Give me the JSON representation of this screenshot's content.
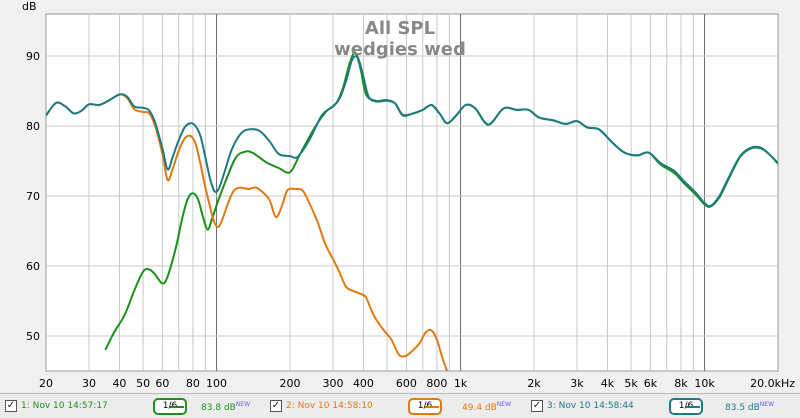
{
  "chart_data": {
    "type": "line",
    "title": "All SPL",
    "subtitle": "wedgies wed",
    "ylabel": "dB",
    "xlabel": "",
    "xscale": "log",
    "xlim": [
      20,
      20000
    ],
    "ylim": [
      45,
      96
    ],
    "grid": true,
    "x_ticks": [
      {
        "v": 20,
        "t": "20"
      },
      {
        "v": 30,
        "t": "30"
      },
      {
        "v": 40,
        "t": "40"
      },
      {
        "v": 50,
        "t": "50"
      },
      {
        "v": 60,
        "t": "60"
      },
      {
        "v": 80,
        "t": "80"
      },
      {
        "v": 100,
        "t": "100"
      },
      {
        "v": 200,
        "t": "200"
      },
      {
        "v": 300,
        "t": "300"
      },
      {
        "v": 400,
        "t": "400"
      },
      {
        "v": 600,
        "t": "600"
      },
      {
        "v": 800,
        "t": "800"
      },
      {
        "v": 1000,
        "t": "1k"
      },
      {
        "v": 2000,
        "t": "2k"
      },
      {
        "v": 3000,
        "t": "3k"
      },
      {
        "v": 4000,
        "t": "4k"
      },
      {
        "v": 5000,
        "t": "5k"
      },
      {
        "v": 6000,
        "t": "6k"
      },
      {
        "v": 8000,
        "t": "8k"
      },
      {
        "v": 10000,
        "t": "10k"
      },
      {
        "v": 20000,
        "t": "20.0kHz"
      }
    ],
    "y_ticks": [
      {
        "v": 50,
        "t": "50"
      },
      {
        "v": 60,
        "t": "60"
      },
      {
        "v": 70,
        "t": "70"
      },
      {
        "v": 80,
        "t": "80"
      },
      {
        "v": 90,
        "t": "90"
      }
    ],
    "series": [
      {
        "color": "#1e8f1e",
        "points": [
          [
            35,
            48
          ],
          [
            38,
            50.5
          ],
          [
            42,
            53
          ],
          [
            46,
            56.5
          ],
          [
            50,
            59.2
          ],
          [
            53,
            59.5
          ],
          [
            56,
            58.8
          ],
          [
            60,
            57.5
          ],
          [
            63,
            58.5
          ],
          [
            68,
            62.5
          ],
          [
            72,
            66.5
          ],
          [
            76,
            69.5
          ],
          [
            80,
            70.4
          ],
          [
            84,
            69.5
          ],
          [
            88,
            67
          ],
          [
            92,
            65.2
          ],
          [
            96,
            66.8
          ],
          [
            102,
            69.5
          ],
          [
            110,
            72.5
          ],
          [
            120,
            75.5
          ],
          [
            130,
            76.3
          ],
          [
            140,
            76.2
          ],
          [
            160,
            74.8
          ],
          [
            180,
            74
          ],
          [
            200,
            73.4
          ],
          [
            220,
            76
          ],
          [
            250,
            79.5
          ],
          [
            280,
            82
          ],
          [
            310,
            83.3
          ],
          [
            330,
            85.5
          ],
          [
            350,
            88.8
          ],
          [
            370,
            90.5
          ],
          [
            390,
            88
          ],
          [
            410,
            84.5
          ],
          [
            450,
            83.6
          ],
          [
            500,
            83.7
          ],
          [
            540,
            83.2
          ],
          [
            580,
            81.5
          ],
          [
            640,
            81.8
          ],
          [
            700,
            82.3
          ],
          [
            760,
            83
          ],
          [
            820,
            81.8
          ],
          [
            880,
            80.4
          ],
          [
            960,
            81.5
          ],
          [
            1050,
            83
          ],
          [
            1150,
            82.5
          ],
          [
            1300,
            80.2
          ],
          [
            1500,
            82.5
          ],
          [
            1700,
            82.3
          ],
          [
            1900,
            82.3
          ],
          [
            2100,
            81.2
          ],
          [
            2400,
            80.8
          ],
          [
            2700,
            80.3
          ],
          [
            3000,
            80.7
          ],
          [
            3300,
            79.8
          ],
          [
            3700,
            79.5
          ],
          [
            4200,
            77.6
          ],
          [
            4700,
            76.2
          ],
          [
            5300,
            75.8
          ],
          [
            5900,
            76.2
          ],
          [
            6600,
            74.5
          ],
          [
            7500,
            73.3
          ],
          [
            8300,
            71.7
          ],
          [
            9200,
            70.2
          ],
          [
            10000,
            68.8
          ],
          [
            10600,
            68.5
          ],
          [
            11500,
            69.8
          ],
          [
            12500,
            72.3
          ],
          [
            14000,
            75.6
          ],
          [
            15500,
            76.8
          ],
          [
            17000,
            76.8
          ],
          [
            18500,
            75.9
          ],
          [
            20000,
            74.6
          ]
        ]
      },
      {
        "color": "#e07a10",
        "points": [
          [
            20,
            81.5
          ],
          [
            22,
            83.3
          ],
          [
            24,
            82.8
          ],
          [
            26,
            81.8
          ],
          [
            28,
            82.2
          ],
          [
            30,
            83.1
          ],
          [
            33,
            83
          ],
          [
            36,
            83.6
          ],
          [
            40,
            84.5
          ],
          [
            43,
            84
          ],
          [
            46,
            82.4
          ],
          [
            50,
            82
          ],
          [
            53,
            81.8
          ],
          [
            56,
            80
          ],
          [
            60,
            76
          ],
          [
            63,
            72.3
          ],
          [
            66,
            73.8
          ],
          [
            70,
            76.5
          ],
          [
            74,
            78.2
          ],
          [
            78,
            78.6
          ],
          [
            82,
            77.5
          ],
          [
            86,
            74.5
          ],
          [
            90,
            71.2
          ],
          [
            94,
            68.5
          ],
          [
            98,
            66.2
          ],
          [
            102,
            65.6
          ],
          [
            106,
            66.8
          ],
          [
            112,
            69.2
          ],
          [
            118,
            70.8
          ],
          [
            125,
            71.2
          ],
          [
            135,
            71
          ],
          [
            145,
            71.2
          ],
          [
            155,
            70.5
          ],
          [
            165,
            69.4
          ],
          [
            175,
            67
          ],
          [
            185,
            68.5
          ],
          [
            195,
            70.8
          ],
          [
            210,
            71
          ],
          [
            225,
            70.8
          ],
          [
            240,
            69
          ],
          [
            260,
            66.2
          ],
          [
            280,
            63
          ],
          [
            300,
            61
          ],
          [
            320,
            59
          ],
          [
            340,
            57
          ],
          [
            365,
            56.4
          ],
          [
            390,
            56
          ],
          [
            410,
            55.5
          ],
          [
            440,
            53
          ],
          [
            480,
            51
          ],
          [
            520,
            49.5
          ],
          [
            560,
            47.3
          ],
          [
            600,
            47.2
          ],
          [
            640,
            48
          ],
          [
            680,
            49
          ],
          [
            720,
            50.5
          ],
          [
            760,
            50.8
          ],
          [
            800,
            49.5
          ],
          [
            840,
            47
          ],
          [
            880,
            45
          ]
        ]
      },
      {
        "color": "#1d7b80",
        "points": [
          [
            20,
            81.5
          ],
          [
            22,
            83.3
          ],
          [
            24,
            82.8
          ],
          [
            26,
            81.8
          ],
          [
            28,
            82.2
          ],
          [
            30,
            83.1
          ],
          [
            33,
            83
          ],
          [
            36,
            83.6
          ],
          [
            40,
            84.5
          ],
          [
            43,
            84.2
          ],
          [
            46,
            82.8
          ],
          [
            50,
            82.6
          ],
          [
            53,
            82.2
          ],
          [
            56,
            80.5
          ],
          [
            60,
            76.8
          ],
          [
            63,
            73.8
          ],
          [
            66,
            75.5
          ],
          [
            70,
            78
          ],
          [
            74,
            79.8
          ],
          [
            78,
            80.4
          ],
          [
            82,
            80
          ],
          [
            86,
            78.5
          ],
          [
            90,
            75.5
          ],
          [
            94,
            72.5
          ],
          [
            98,
            70.7
          ],
          [
            102,
            71
          ],
          [
            108,
            73.5
          ],
          [
            115,
            76.5
          ],
          [
            125,
            78.8
          ],
          [
            135,
            79.5
          ],
          [
            150,
            79.3
          ],
          [
            165,
            77.8
          ],
          [
            180,
            76
          ],
          [
            200,
            75.7
          ],
          [
            215,
            75.6
          ],
          [
            240,
            78
          ],
          [
            270,
            81.5
          ],
          [
            300,
            82.8
          ],
          [
            320,
            84
          ],
          [
            340,
            86.5
          ],
          [
            360,
            89.5
          ],
          [
            380,
            89.7
          ],
          [
            400,
            87
          ],
          [
            420,
            84.2
          ],
          [
            450,
            83.5
          ],
          [
            500,
            83.6
          ],
          [
            540,
            83.2
          ],
          [
            580,
            81.6
          ],
          [
            640,
            81.8
          ],
          [
            700,
            82.3
          ],
          [
            760,
            83
          ],
          [
            820,
            81.8
          ],
          [
            880,
            80.4
          ],
          [
            960,
            81.5
          ],
          [
            1050,
            83
          ],
          [
            1150,
            82.5
          ],
          [
            1300,
            80.2
          ],
          [
            1500,
            82.5
          ],
          [
            1700,
            82.3
          ],
          [
            1900,
            82.3
          ],
          [
            2100,
            81.2
          ],
          [
            2400,
            80.8
          ],
          [
            2700,
            80.3
          ],
          [
            3000,
            80.7
          ],
          [
            3300,
            79.8
          ],
          [
            3700,
            79.5
          ],
          [
            4200,
            77.6
          ],
          [
            4700,
            76.2
          ],
          [
            5300,
            75.8
          ],
          [
            5900,
            76.2
          ],
          [
            6600,
            74.7
          ],
          [
            7500,
            73.6
          ],
          [
            8300,
            72
          ],
          [
            9200,
            70.5
          ],
          [
            10000,
            69
          ],
          [
            10600,
            68.6
          ],
          [
            11500,
            70
          ],
          [
            12500,
            72.5
          ],
          [
            14000,
            75.7
          ],
          [
            15500,
            76.9
          ],
          [
            17000,
            76.9
          ],
          [
            18500,
            75.9
          ],
          [
            20000,
            74.7
          ]
        ]
      }
    ]
  },
  "legend": [
    {
      "checked": "✓",
      "label": "1: Nov 10 14:57:17",
      "smoothing": "1/6",
      "level": "83.8 dB",
      "badge": "NEW",
      "color": "#1e8f1e"
    },
    {
      "checked": "✓",
      "label": "2: Nov 10 14:58:10",
      "smoothing": "1/6",
      "level": "49.4 dB",
      "badge": "NEW",
      "color": "#e07a10"
    },
    {
      "checked": "✓",
      "label": "3: Nov 10 14:58:44",
      "smoothing": "1/6",
      "level": "83.5 dB",
      "badge": "NEW",
      "color": "#1d7b80"
    }
  ]
}
